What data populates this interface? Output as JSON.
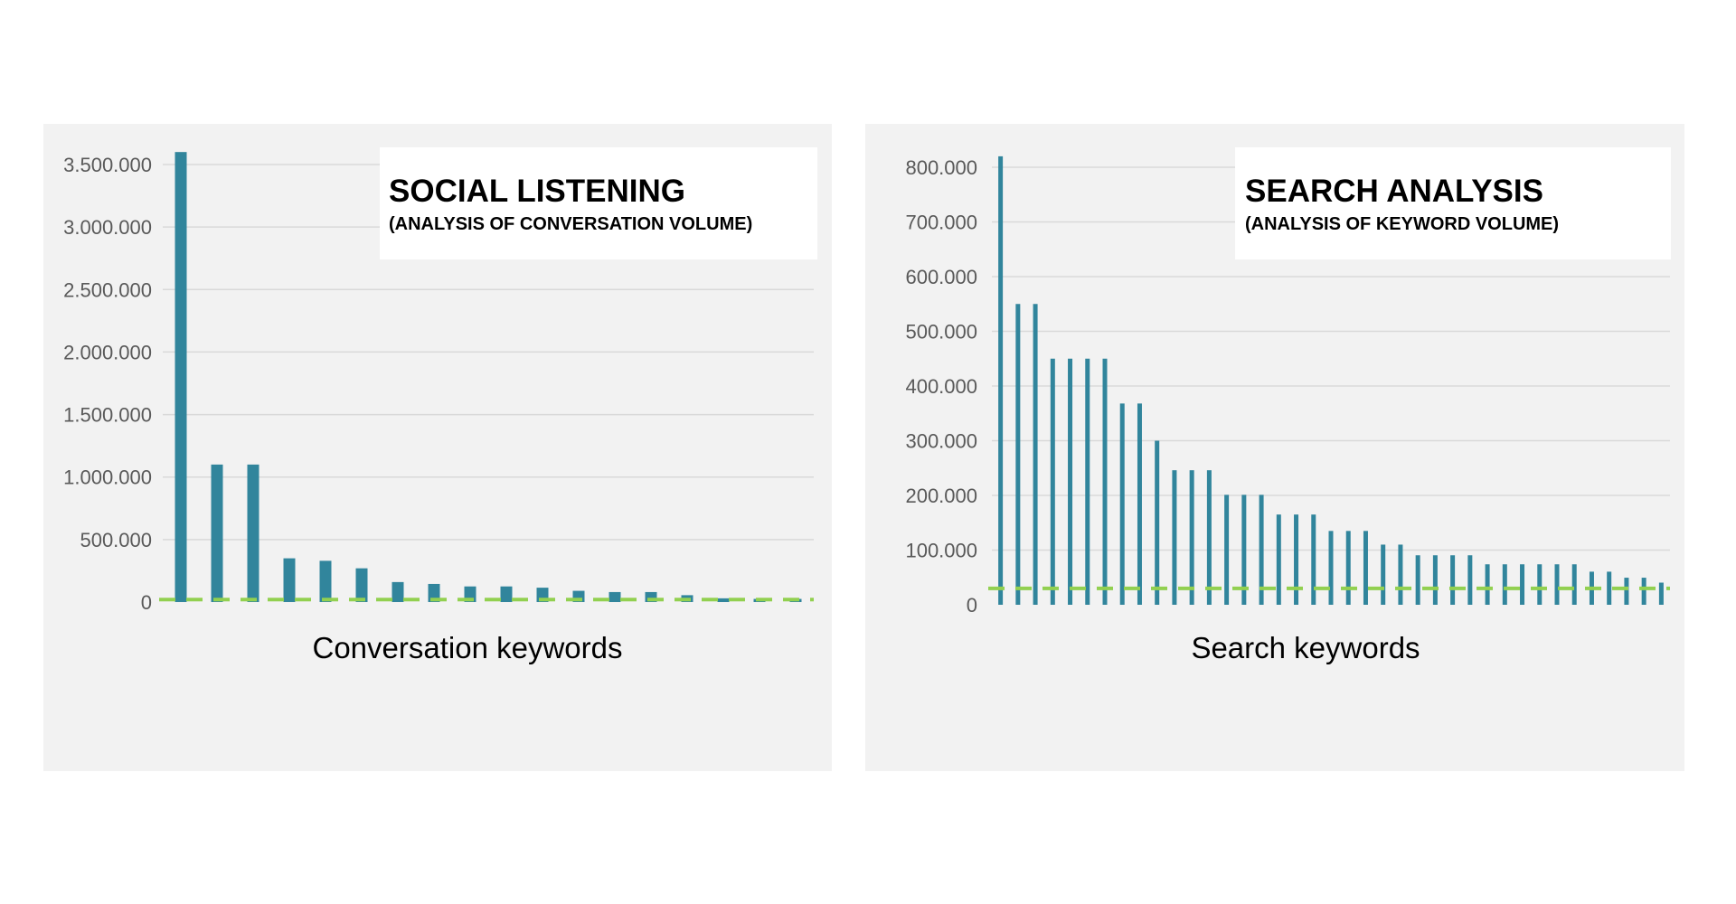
{
  "chart_data": [
    {
      "type": "bar",
      "title": "SOCIAL LISTENING",
      "subtitle": "(ANALYSIS OF CONVERSATION VOLUME)",
      "xlabel": "Conversation keywords",
      "ylabel": "",
      "ylim": [
        0,
        3500000
      ],
      "yticks": [
        "0",
        "500.000",
        "1.000.000",
        "1.500.000",
        "2.000.000",
        "2.500.000",
        "3.000.000",
        "3.500.000"
      ],
      "ytick_values": [
        0,
        500000,
        1000000,
        1500000,
        2000000,
        2500000,
        3000000,
        3500000
      ],
      "values": [
        3600000,
        1100000,
        1100000,
        350000,
        330000,
        270000,
        160000,
        145000,
        125000,
        125000,
        115000,
        90000,
        80000,
        80000,
        55000,
        30000,
        25000,
        25000
      ],
      "threshold": 20000,
      "grid": true,
      "bar_color": "#31859c",
      "threshold_color": "#92d050"
    },
    {
      "type": "bar",
      "title": "SEARCH ANALYSIS",
      "subtitle": "(ANALYSIS OF KEYWORD VOLUME)",
      "xlabel": "Search keywords",
      "ylabel": "",
      "ylim": [
        0,
        800000
      ],
      "yticks": [
        "0",
        "100.000",
        "200.000",
        "300.000",
        "400.000",
        "500.000",
        "600.000",
        "700.000",
        "800.000"
      ],
      "ytick_values": [
        0,
        100000,
        200000,
        300000,
        400000,
        500000,
        600000,
        700000,
        800000
      ],
      "values": [
        820000,
        550000,
        550000,
        450000,
        450000,
        450000,
        450000,
        368000,
        368000,
        300000,
        246000,
        246000,
        246000,
        201000,
        201000,
        201000,
        165000,
        165000,
        165000,
        135000,
        135000,
        135000,
        110000,
        110000,
        90500,
        90500,
        90500,
        90500,
        74000,
        74000,
        74000,
        74000,
        74000,
        74000,
        60500,
        60500,
        49500,
        49500,
        40500
      ],
      "threshold": 30000,
      "grid": true,
      "bar_color": "#31859c",
      "threshold_color": "#92d050"
    }
  ]
}
